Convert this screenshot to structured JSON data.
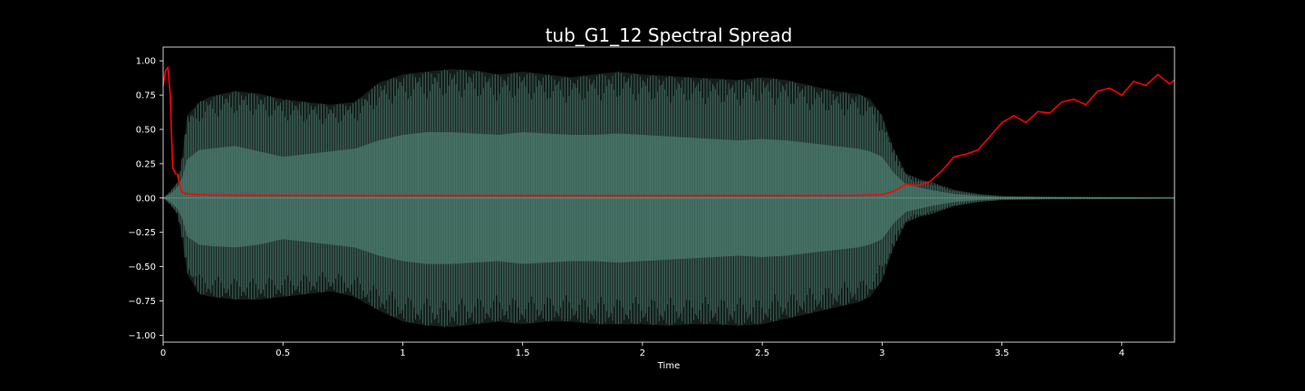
{
  "chart_data": {
    "type": "line",
    "title": "tub_G1_12 Spectral Spread",
    "xlabel": "Time",
    "ylabel": "",
    "xlim": [
      0,
      4.22
    ],
    "ylim": [
      -1.05,
      1.1
    ],
    "x_ticks": [
      0,
      0.5,
      1,
      1.5,
      2,
      2.5,
      3,
      3.5,
      4
    ],
    "x_tick_labels": [
      "0",
      "0.5",
      "1",
      "1.5",
      "2",
      "2.5",
      "3",
      "3.5",
      "4"
    ],
    "y_ticks": [
      1.0,
      0.75,
      0.5,
      0.25,
      0.0,
      -0.25,
      -0.5,
      -0.75,
      -1.0
    ],
    "y_tick_labels": [
      "1.00",
      "0.75",
      "0.50",
      "0.25",
      "0.00",
      "−0.25",
      "−0.50",
      "−0.75",
      "−1.00"
    ],
    "grid": false,
    "background": "#000000",
    "series": [
      {
        "kind": "waveform-envelope",
        "color": "#5a8f80",
        "x": [
          0,
          0.03,
          0.06,
          0.08,
          0.1,
          0.15,
          0.2,
          0.3,
          0.4,
          0.5,
          0.6,
          0.7,
          0.8,
          0.9,
          1.0,
          1.1,
          1.2,
          1.3,
          1.4,
          1.5,
          1.6,
          1.7,
          1.8,
          1.9,
          2.0,
          2.1,
          2.2,
          2.3,
          2.4,
          2.5,
          2.6,
          2.7,
          2.8,
          2.9,
          2.95,
          3.0,
          3.05,
          3.1,
          3.15,
          3.2,
          3.3,
          3.4,
          3.5,
          3.7,
          4.0,
          4.22
        ],
        "upper": [
          0.0,
          0.05,
          0.12,
          0.3,
          0.6,
          0.7,
          0.74,
          0.78,
          0.76,
          0.72,
          0.7,
          0.68,
          0.7,
          0.84,
          0.9,
          0.92,
          0.94,
          0.93,
          0.9,
          0.92,
          0.9,
          0.88,
          0.9,
          0.92,
          0.9,
          0.89,
          0.88,
          0.87,
          0.86,
          0.88,
          0.86,
          0.82,
          0.78,
          0.76,
          0.72,
          0.6,
          0.35,
          0.18,
          0.14,
          0.12,
          0.06,
          0.03,
          0.015,
          0.01,
          0.008,
          0.005
        ],
        "lower": [
          0.0,
          -0.05,
          -0.12,
          -0.3,
          -0.55,
          -0.7,
          -0.72,
          -0.74,
          -0.74,
          -0.72,
          -0.7,
          -0.68,
          -0.72,
          -0.82,
          -0.9,
          -0.93,
          -0.94,
          -0.92,
          -0.9,
          -0.92,
          -0.9,
          -0.9,
          -0.92,
          -0.92,
          -0.92,
          -0.93,
          -0.92,
          -0.92,
          -0.93,
          -0.92,
          -0.88,
          -0.84,
          -0.8,
          -0.76,
          -0.72,
          -0.6,
          -0.35,
          -0.18,
          -0.14,
          -0.12,
          -0.06,
          -0.03,
          -0.015,
          -0.01,
          -0.008,
          -0.005
        ],
        "inner_upper": [
          0.0,
          0.03,
          0.08,
          0.15,
          0.28,
          0.35,
          0.36,
          0.38,
          0.34,
          0.3,
          0.32,
          0.34,
          0.36,
          0.42,
          0.46,
          0.48,
          0.48,
          0.47,
          0.46,
          0.48,
          0.47,
          0.46,
          0.46,
          0.47,
          0.46,
          0.45,
          0.44,
          0.43,
          0.42,
          0.43,
          0.42,
          0.4,
          0.38,
          0.36,
          0.34,
          0.3,
          0.18,
          0.1,
          0.08,
          0.06,
          0.03,
          0.015,
          0.008,
          0.005,
          0.004,
          0.003
        ],
        "inner_lower": [
          0.0,
          -0.03,
          -0.08,
          -0.15,
          -0.28,
          -0.34,
          -0.35,
          -0.36,
          -0.34,
          -0.3,
          -0.32,
          -0.34,
          -0.36,
          -0.42,
          -0.46,
          -0.48,
          -0.48,
          -0.47,
          -0.46,
          -0.48,
          -0.47,
          -0.46,
          -0.46,
          -0.47,
          -0.46,
          -0.45,
          -0.44,
          -0.43,
          -0.42,
          -0.43,
          -0.42,
          -0.4,
          -0.38,
          -0.36,
          -0.34,
          -0.3,
          -0.18,
          -0.1,
          -0.08,
          -0.06,
          -0.03,
          -0.015,
          -0.008,
          -0.005,
          -0.004,
          -0.003
        ]
      },
      {
        "kind": "line",
        "color": "#ff0000",
        "x": [
          0.0,
          0.01,
          0.02,
          0.03,
          0.035,
          0.04,
          0.05,
          0.06,
          0.07,
          0.08,
          0.1,
          0.15,
          0.2,
          0.5,
          1.0,
          1.5,
          2.0,
          2.5,
          2.9,
          3.0,
          3.05,
          3.1,
          3.15,
          3.2,
          3.25,
          3.3,
          3.35,
          3.4,
          3.45,
          3.5,
          3.55,
          3.6,
          3.65,
          3.7,
          3.75,
          3.8,
          3.85,
          3.9,
          3.95,
          4.0,
          4.05,
          4.1,
          4.15,
          4.2,
          4.22
        ],
        "y": [
          0.82,
          0.93,
          0.95,
          0.75,
          0.45,
          0.22,
          0.18,
          0.17,
          0.09,
          0.04,
          0.03,
          0.025,
          0.022,
          0.02,
          0.018,
          0.018,
          0.017,
          0.018,
          0.02,
          0.025,
          0.05,
          0.1,
          0.09,
          0.12,
          0.2,
          0.3,
          0.32,
          0.35,
          0.45,
          0.55,
          0.6,
          0.55,
          0.63,
          0.62,
          0.7,
          0.72,
          0.68,
          0.78,
          0.8,
          0.75,
          0.85,
          0.82,
          0.9,
          0.83,
          0.86
        ]
      }
    ]
  }
}
